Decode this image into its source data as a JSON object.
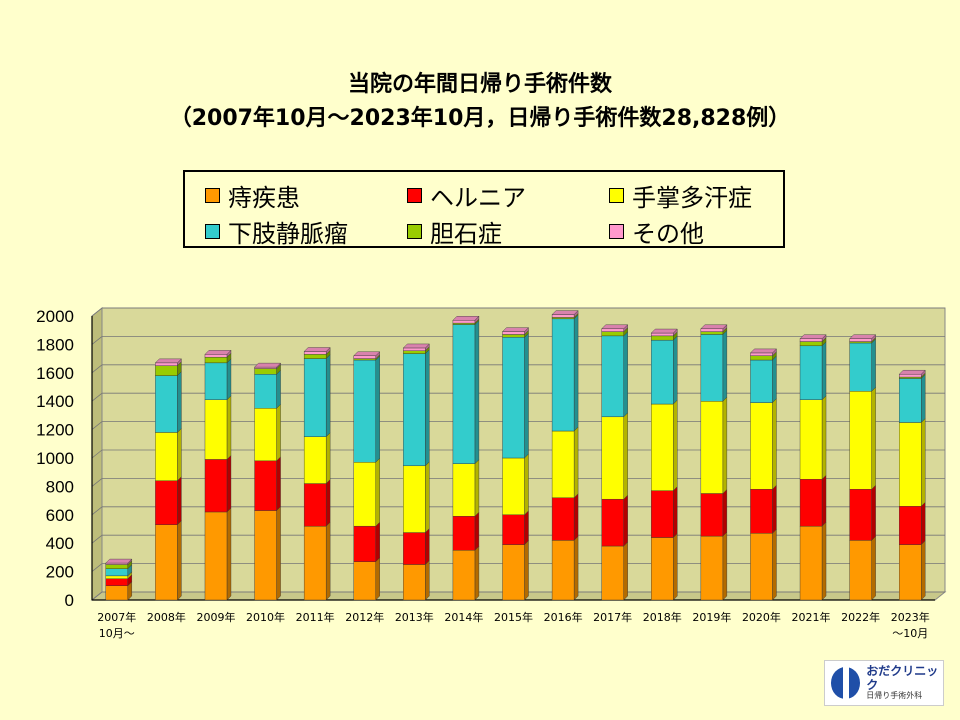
{
  "chart_data": {
    "type": "bar",
    "stacked": true,
    "title": "当院の年間日帰り手術件数",
    "subtitle": "（2007年10月～2023年10月，日帰り手術件数28,828例）",
    "categories": [
      "2007年",
      "2008年",
      "2009年",
      "2010年",
      "2011年",
      "2012年",
      "2013年",
      "2014年",
      "2015年",
      "2016年",
      "2017年",
      "2018年",
      "2019年",
      "2020年",
      "2021年",
      "2022年",
      "2023年"
    ],
    "category_sublabels": [
      "10月～",
      "",
      "",
      "",
      "",
      "",
      "",
      "",
      "",
      "",
      "",
      "",
      "",
      "",
      "",
      "",
      "～10月"
    ],
    "ylim": [
      0,
      2000
    ],
    "yticks": [
      "0",
      "200",
      "400",
      "600",
      "800",
      "1000",
      "1200",
      "1400",
      "1600",
      "1800",
      "2000"
    ],
    "grid": true,
    "legend_position": "top",
    "series": [
      {
        "name": "痔疾患",
        "color": "#ff9900",
        "values": [
          100,
          530,
          620,
          630,
          520,
          270,
          250,
          350,
          390,
          420,
          380,
          440,
          450,
          470,
          520,
          420,
          390
        ]
      },
      {
        "name": "ヘルニア",
        "color": "#ff0000",
        "values": [
          50,
          310,
          370,
          350,
          300,
          250,
          225,
          240,
          210,
          300,
          330,
          330,
          300,
          310,
          330,
          360,
          270
        ]
      },
      {
        "name": "手掌多汗症",
        "color": "#ffff00",
        "values": [
          20,
          340,
          420,
          370,
          330,
          450,
          470,
          370,
          400,
          470,
          580,
          610,
          650,
          610,
          560,
          690,
          590
        ]
      },
      {
        "name": "下肢静脈瘤",
        "color": "#33cccc",
        "values": [
          50,
          400,
          260,
          240,
          550,
          720,
          790,
          980,
          850,
          790,
          570,
          450,
          470,
          300,
          380,
          340,
          310
        ]
      },
      {
        "name": "胆石症",
        "color": "#99cc00",
        "values": [
          30,
          70,
          40,
          40,
          30,
          10,
          20,
          10,
          20,
          10,
          30,
          30,
          20,
          30,
          30,
          10,
          10
        ]
      },
      {
        "name": "その他",
        "color": "#ff99cc",
        "values": [
          10,
          20,
          20,
          10,
          20,
          20,
          20,
          20,
          20,
          20,
          20,
          20,
          20,
          20,
          20,
          20,
          20
        ]
      }
    ]
  },
  "logo": {
    "name": "おだクリニック",
    "sub": "日帰り手術外科"
  }
}
